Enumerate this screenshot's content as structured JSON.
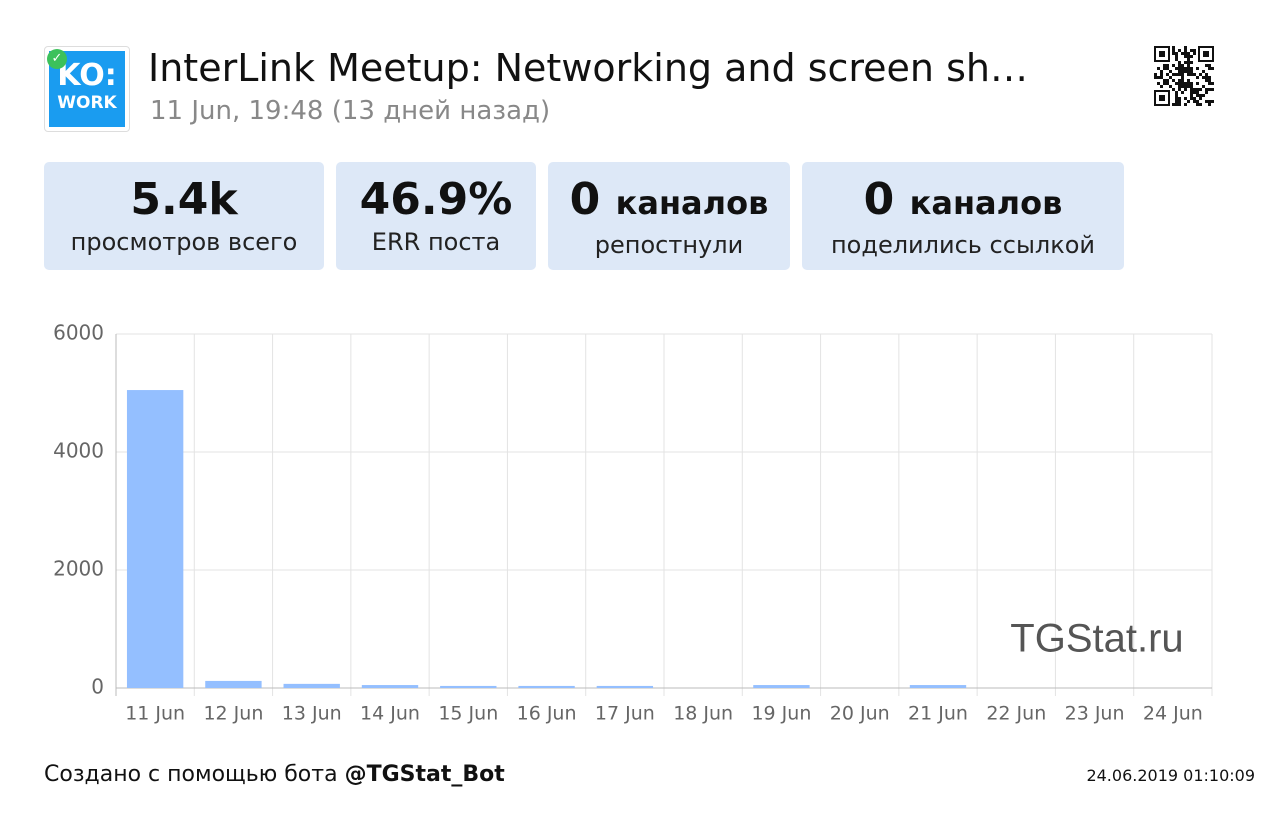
{
  "header": {
    "logo": {
      "top": "KO:",
      "bottom": "WORK"
    },
    "title": "InterLink Meetup: Networking and screen sh…",
    "subtitle": "11 Jun, 19:48 (13 дней назад)"
  },
  "stats": [
    {
      "value": "5.4k",
      "label": "просмотров всего"
    },
    {
      "value": "46.9%",
      "label": "ERR поста"
    },
    {
      "value": "0",
      "unit": "каналов",
      "label": "репостнули"
    },
    {
      "value": "0",
      "unit": "каналов",
      "label": "поделились ссылкой"
    }
  ],
  "chart_data": {
    "type": "bar",
    "watermark": "TGStat.ru",
    "categories": [
      "11 Jun",
      "12 Jun",
      "13 Jun",
      "14 Jun",
      "15 Jun",
      "16 Jun",
      "17 Jun",
      "18 Jun",
      "19 Jun",
      "20 Jun",
      "21 Jun",
      "22 Jun",
      "23 Jun",
      "24 Jun"
    ],
    "values": [
      5050,
      120,
      70,
      50,
      35,
      35,
      35,
      0,
      50,
      0,
      50,
      0,
      0,
      0
    ],
    "color": "#94bfff",
    "ylim": [
      0,
      6000
    ],
    "yticks": [
      0,
      2000,
      4000,
      6000
    ],
    "grid": true
  },
  "footer": {
    "text": "Создано с помощью бота",
    "bot": "@TGStat_Bot",
    "timestamp": "24.06.2019 01:10:09"
  }
}
